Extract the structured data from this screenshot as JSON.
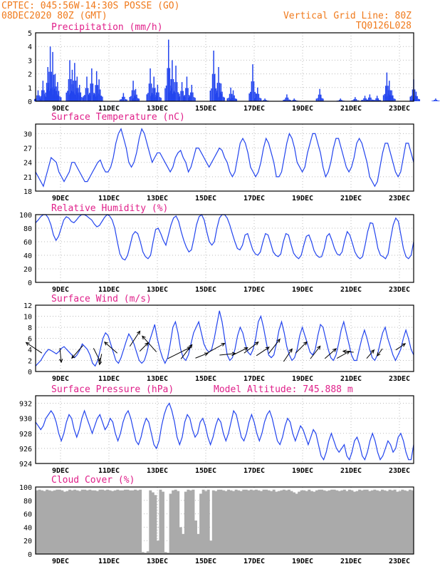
{
  "header": {
    "line1": "CPTEC:   045:56W-14:30S   POSSE (GO)",
    "line2": "08DEC2020 80Z (GMT)",
    "right1": "Vertical Grid Line: 80Z",
    "right2": "TQ0126L028"
  },
  "colors": {
    "series": "#2244ee",
    "cloud": "#aaaaaa",
    "header": "#f07a1c",
    "title": "#e0208a"
  },
  "chart_data": [
    {
      "type": "bar",
      "title": "Precipitation (mm/h)",
      "x_ticks": [
        "9DEC",
        "11DEC",
        "13DEC",
        "15DEC",
        "17DEC",
        "19DEC",
        "21DEC",
        "23DEC"
      ],
      "ylim": [
        0,
        5
      ],
      "yticks": [
        0,
        1,
        2,
        3,
        4,
        5
      ],
      "days": 15.5,
      "peaks": [
        [
          0.1,
          0.8
        ],
        [
          0.3,
          1.5
        ],
        [
          0.5,
          2.5
        ],
        [
          0.6,
          4.0
        ],
        [
          0.7,
          3.6
        ],
        [
          0.8,
          2.0
        ],
        [
          0.9,
          1.4
        ],
        [
          1.4,
          3.0
        ],
        [
          1.5,
          2.3
        ],
        [
          1.6,
          2.8
        ],
        [
          1.7,
          1.8
        ],
        [
          1.8,
          1.2
        ],
        [
          2.1,
          1.8
        ],
        [
          2.3,
          2.4
        ],
        [
          2.5,
          2.2
        ],
        [
          2.6,
          1.6
        ],
        [
          3.6,
          0.6
        ],
        [
          4.0,
          1.5
        ],
        [
          4.1,
          0.9
        ],
        [
          4.7,
          2.4
        ],
        [
          4.85,
          1.8
        ],
        [
          5.0,
          1.2
        ],
        [
          5.45,
          4.5
        ],
        [
          5.6,
          3.0
        ],
        [
          5.75,
          2.6
        ],
        [
          6.0,
          1.4
        ],
        [
          6.2,
          1.8
        ],
        [
          6.4,
          1.2
        ],
        [
          7.3,
          3.7
        ],
        [
          7.5,
          2.5
        ],
        [
          7.6,
          1.3
        ],
        [
          8.0,
          1.0
        ],
        [
          8.1,
          0.8
        ],
        [
          8.9,
          2.7
        ],
        [
          9.1,
          1.0
        ],
        [
          9.4,
          0.2
        ],
        [
          10.3,
          0.5
        ],
        [
          10.6,
          0.2
        ],
        [
          11.65,
          0.9
        ],
        [
          12.5,
          0.2
        ],
        [
          13.1,
          0.3
        ],
        [
          13.5,
          0.4
        ],
        [
          13.7,
          0.5
        ],
        [
          14.0,
          0.4
        ],
        [
          14.4,
          2.1
        ],
        [
          14.5,
          1.5
        ],
        [
          14.6,
          0.8
        ],
        [
          15.5,
          1.6
        ],
        [
          15.6,
          0.7
        ],
        [
          16.4,
          0.2
        ]
      ]
    },
    {
      "type": "line",
      "title": "Surface Temperature (nC)",
      "x_ticks": [
        "9DEC",
        "11DEC",
        "13DEC",
        "15DEC",
        "17DEC",
        "19DEC",
        "21DEC",
        "23DEC"
      ],
      "ylim": [
        18,
        32
      ],
      "yticks": [
        18,
        21,
        24,
        27,
        30
      ],
      "days": 15.5,
      "values": [
        22,
        21,
        20,
        19,
        21,
        23,
        25,
        24.5,
        24,
        22,
        21,
        20,
        21,
        22,
        24,
        24,
        23,
        22,
        21,
        20,
        20,
        21,
        22,
        23,
        24,
        24.5,
        23,
        22,
        22,
        23,
        25,
        28,
        30,
        31,
        29,
        27,
        24,
        23,
        24,
        26,
        29,
        31,
        30,
        28,
        26,
        24,
        25,
        26,
        26,
        25,
        24,
        23,
        22,
        23,
        25,
        26,
        26.5,
        25,
        24,
        22,
        23,
        25,
        27,
        27,
        26,
        25,
        24,
        23,
        24,
        25,
        26,
        27,
        26.5,
        25,
        24,
        22,
        21,
        22,
        25,
        28,
        29,
        28,
        26,
        23,
        22,
        21,
        22,
        24,
        27,
        29,
        28,
        26,
        24,
        21,
        21,
        22,
        25,
        28,
        30,
        29,
        27,
        24,
        23,
        22,
        23,
        26,
        28,
        30,
        30,
        28,
        26,
        23,
        21,
        22,
        24,
        27,
        29,
        29,
        27,
        25,
        23,
        22,
        23,
        25,
        28,
        29,
        28,
        26,
        24,
        21,
        20,
        19,
        20,
        23,
        26,
        28,
        28,
        26,
        24,
        22,
        21,
        22,
        25,
        28,
        28,
        26,
        24
      ]
    },
    {
      "type": "line",
      "title": "Relative Humidity (%)",
      "x_ticks": [
        "9DEC",
        "11DEC",
        "13DEC",
        "15DEC",
        "17DEC",
        "19DEC",
        "21DEC",
        "23DEC"
      ],
      "ylim": [
        0,
        100
      ],
      "yticks": [
        0,
        20,
        40,
        60,
        80,
        100
      ],
      "days": 15.5,
      "values": [
        88,
        92,
        97,
        100,
        100,
        95,
        85,
        70,
        62,
        68,
        80,
        92,
        97,
        95,
        90,
        88,
        92,
        97,
        100,
        100,
        98,
        95,
        92,
        86,
        82,
        84,
        90,
        96,
        100,
        98,
        92,
        80,
        60,
        42,
        35,
        33,
        40,
        55,
        70,
        75,
        72,
        60,
        45,
        38,
        35,
        40,
        60,
        78,
        80,
        72,
        62,
        55,
        70,
        85,
        95,
        98,
        90,
        75,
        62,
        52,
        45,
        48,
        65,
        85,
        97,
        100,
        92,
        75,
        60,
        55,
        60,
        80,
        95,
        100,
        100,
        95,
        85,
        72,
        60,
        50,
        48,
        55,
        70,
        72,
        60,
        48,
        42,
        40,
        45,
        60,
        72,
        70,
        58,
        45,
        40,
        38,
        42,
        60,
        72,
        70,
        56,
        43,
        38,
        35,
        40,
        55,
        68,
        70,
        60,
        47,
        40,
        37,
        38,
        50,
        68,
        72,
        62,
        50,
        42,
        40,
        45,
        62,
        75,
        70,
        58,
        45,
        38,
        35,
        38,
        55,
        75,
        88,
        87,
        70,
        50,
        40,
        38,
        35,
        42,
        65,
        85,
        95,
        90,
        70,
        50,
        38,
        35,
        40,
        60
      ]
    },
    {
      "type": "line",
      "title": "Surface Wind (m/s)",
      "x_ticks": [
        "9DEC",
        "11DEC",
        "13DEC",
        "15DEC",
        "17DEC",
        "19DEC",
        "21DEC",
        "23DEC"
      ],
      "ylim": [
        0,
        12
      ],
      "yticks": [
        0,
        2,
        4,
        6,
        8,
        10,
        12
      ],
      "days": 15.5,
      "values": [
        1,
        1.5,
        2,
        2.8,
        3.5,
        4,
        3.8,
        3.5,
        3.2,
        3.6,
        4.2,
        4.5,
        4,
        3.5,
        3,
        2.5,
        3,
        3.8,
        5,
        4.5,
        4,
        3,
        1.5,
        1,
        2,
        4,
        6,
        7,
        6.5,
        5,
        3.5,
        2,
        1.5,
        2.5,
        4,
        5.5,
        6.8,
        6,
        5,
        3.5,
        2,
        1.5,
        2,
        3.5,
        5.5,
        7,
        8.5,
        6,
        4,
        2.5,
        1.5,
        2.5,
        5,
        8,
        9,
        7,
        4,
        2.5,
        2,
        3,
        5,
        7,
        8,
        9,
        7,
        5,
        4,
        3.5,
        4,
        6,
        8.5,
        11,
        9,
        6,
        3,
        2,
        2.5,
        4,
        6.5,
        8,
        7,
        5,
        3.5,
        3,
        4,
        6,
        9,
        10,
        8,
        5.5,
        3,
        2.5,
        3,
        5,
        7.5,
        9,
        7,
        4.5,
        3,
        2,
        2.5,
        4,
        6.5,
        8,
        6.5,
        5,
        3.5,
        3,
        4,
        6.5,
        8.5,
        8,
        6,
        4,
        2.5,
        2,
        3,
        5,
        7.5,
        9,
        7,
        5,
        3,
        2,
        2,
        4,
        6,
        7.5,
        6,
        4,
        2.5,
        2,
        3,
        5,
        7,
        8,
        6,
        4.5,
        3,
        2,
        3,
        4,
        6,
        7.5,
        6,
        4,
        3
      ],
      "arrows": [
        [
          0.2,
          3.5,
          5.0,
          -0.9,
          0.6
        ],
        [
          1.0,
          4.0,
          4.0,
          0.1,
          -1
        ],
        [
          1.9,
          4.5,
          4.5,
          -0.7,
          -0.8
        ],
        [
          2.4,
          4.0,
          3.8,
          0.5,
          -1
        ],
        [
          2.7,
          3.0,
          3.0,
          -0.2,
          -1
        ],
        [
          3.3,
          3.5,
          4.5,
          -0.8,
          0.7
        ],
        [
          3.9,
          4.8,
          4.8,
          0.6,
          0.9
        ],
        [
          4.3,
          3.8,
          3.0,
          0.8,
          0.8
        ],
        [
          4.9,
          3.8,
          5.0,
          -0.8,
          0.9
        ],
        [
          5.5,
          2.5,
          6.5,
          1.0,
          0.5
        ],
        [
          6.0,
          2.5,
          4.5,
          0.7,
          0.9
        ],
        [
          6.6,
          2.5,
          3.5,
          1.0,
          0.4
        ],
        [
          7.1,
          3.5,
          5.5,
          0.9,
          0.5
        ],
        [
          7.6,
          3.0,
          4.5,
          1.0,
          0.1
        ],
        [
          8.1,
          3.0,
          4.5,
          1.0,
          0.5
        ],
        [
          8.6,
          3.5,
          4.5,
          0.9,
          0.7
        ],
        [
          9.1,
          3.0,
          4.0,
          0.9,
          0.6
        ],
        [
          9.6,
          3.5,
          4.5,
          0.7,
          0.9
        ],
        [
          10.2,
          2.0,
          4.0,
          0.6,
          0.9
        ],
        [
          10.7,
          3.5,
          4.0,
          0.8,
          0.8
        ],
        [
          11.3,
          2.5,
          4.0,
          0.7,
          0.9
        ],
        [
          11.9,
          2.5,
          4.0,
          0.8,
          0.7
        ],
        [
          12.4,
          2.5,
          4.0,
          0.9,
          0.5
        ],
        [
          13.0,
          3.5,
          3.0,
          -1,
          0.1
        ],
        [
          13.6,
          2.5,
          3.0,
          0.7,
          0.8
        ],
        [
          14.2,
          4.0,
          2.5,
          -0.6,
          -0.8
        ],
        [
          14.8,
          4.0,
          3.0,
          0.9,
          0.6
        ]
      ]
    },
    {
      "type": "line",
      "title": "Surface Pressure (hPa)",
      "annotation": "Model Altitude: 745.888 m",
      "x_ticks": [
        "9DEC",
        "11DEC",
        "13DEC",
        "15DEC",
        "17DEC",
        "19DEC",
        "21DEC",
        "23DEC"
      ],
      "ylim": [
        924,
        933
      ],
      "yticks": [
        924,
        926,
        928,
        930,
        932
      ],
      "days": 15.5,
      "values": [
        929.5,
        929,
        928.5,
        929,
        930,
        930.5,
        931,
        930.5,
        929.5,
        928,
        927,
        928,
        929.5,
        930.5,
        930,
        928.5,
        927.5,
        928.5,
        930,
        931,
        930,
        929,
        928,
        929,
        930,
        930.5,
        929.5,
        928.5,
        929,
        930,
        929.5,
        928,
        927,
        928,
        929.5,
        930.5,
        931,
        930,
        928.5,
        927,
        926.5,
        927.5,
        929,
        930,
        929.5,
        928,
        926.5,
        926,
        927,
        929,
        930.5,
        931.5,
        932,
        931,
        929.5,
        927.5,
        926.5,
        927.5,
        929.5,
        930.5,
        930,
        928.5,
        927.5,
        928,
        929.5,
        930,
        929,
        927.5,
        926.5,
        927.5,
        929,
        930,
        929.5,
        928,
        927,
        928,
        929.5,
        931,
        930.5,
        929,
        927.5,
        927,
        928,
        929.5,
        930.5,
        929.5,
        928,
        927,
        928,
        929.5,
        930.5,
        931,
        930,
        928.5,
        927,
        926.5,
        927.5,
        929,
        930,
        929.5,
        928,
        927,
        928,
        929,
        928.5,
        927.5,
        926.5,
        927.5,
        928.5,
        928,
        926.5,
        925,
        924.5,
        925.5,
        927,
        928,
        927,
        926,
        925.5,
        926,
        926.5,
        925,
        924.5,
        925.5,
        927,
        927.5,
        926.5,
        925,
        924.5,
        925.5,
        927,
        928,
        927,
        925.5,
        924.5,
        925,
        926,
        927,
        926.5,
        925.5,
        926,
        927.5,
        928,
        927,
        925.5,
        924.5,
        924.5,
        926.5
      ]
    },
    {
      "type": "bar",
      "title": "Cloud Cover (%)",
      "x_ticks": [
        "9DEC",
        "11DEC",
        "13DEC",
        "15DEC",
        "17DEC",
        "19DEC",
        "21DEC",
        "23DEC"
      ],
      "ylim": [
        0,
        100
      ],
      "yticks": [
        0,
        20,
        40,
        60,
        80,
        100
      ],
      "days": 15.5,
      "values": [
        95,
        96,
        95,
        94,
        96,
        95,
        94,
        95,
        96,
        96,
        95,
        93,
        94,
        96,
        95,
        96,
        95,
        94,
        96,
        96,
        95,
        96,
        95,
        95,
        94,
        96,
        96,
        95,
        96,
        95,
        94,
        95,
        96,
        95,
        95,
        96,
        96,
        95,
        95,
        96,
        95,
        96,
        3,
        2,
        4,
        95,
        92,
        88,
        20,
        96,
        93,
        3,
        2,
        90,
        95,
        96,
        94,
        40,
        30,
        93,
        96,
        95,
        96,
        50,
        30,
        90,
        96,
        94,
        96,
        20,
        95,
        94,
        96,
        96,
        95,
        94,
        96,
        95,
        94,
        96,
        95,
        94,
        96,
        96,
        95,
        96,
        95,
        96,
        95,
        94,
        96,
        96,
        95,
        94,
        96,
        93,
        94,
        95,
        96,
        95,
        96,
        94,
        92,
        90,
        93,
        95,
        95,
        94,
        96,
        94,
        93,
        95,
        96,
        96,
        95,
        94,
        95,
        96,
        96,
        95,
        94,
        95,
        96,
        94,
        96,
        95,
        93,
        94,
        96,
        95,
        96,
        96,
        94,
        95,
        96,
        95,
        94,
        96,
        95,
        94,
        96,
        95,
        96,
        93,
        94,
        96,
        95,
        94,
        96,
        95
      ]
    }
  ]
}
